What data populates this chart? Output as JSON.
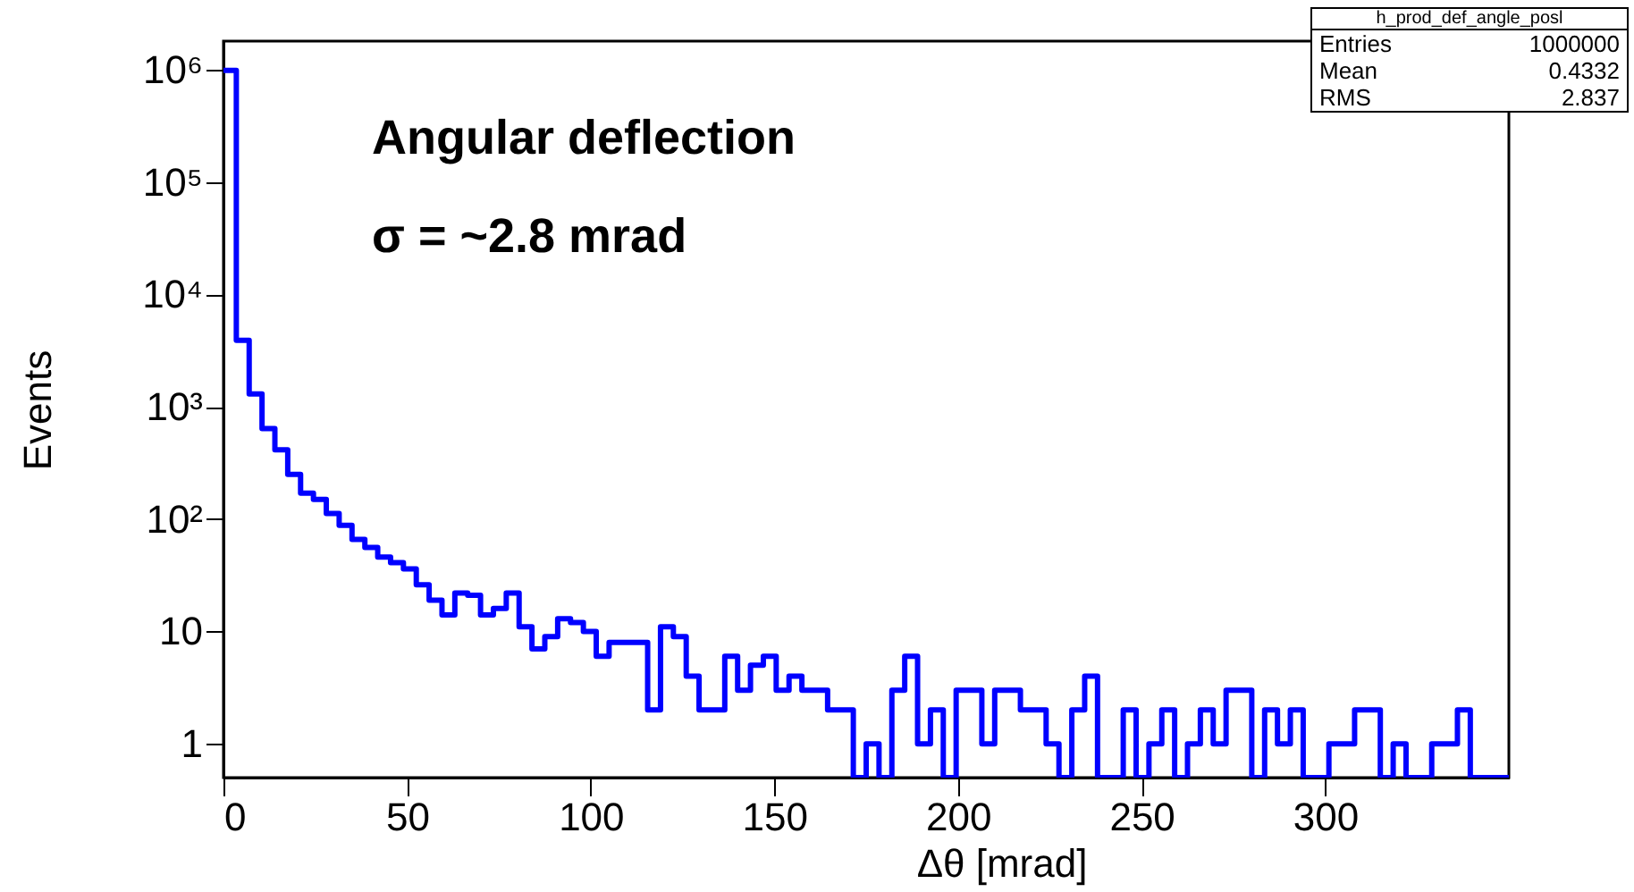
{
  "chart_data": {
    "type": "histogram",
    "xlabel": "Δθ [mrad]",
    "ylabel": "Events",
    "annotations": [
      "Angular deflection",
      "σ = ~2.8 mrad",
      "h_prod_def_angle_posl",
      "Entries 1000000",
      "Mean 0.4332",
      "RMS 2.837"
    ],
    "bins": [
      0,
      3.5,
      7,
      10.5,
      14,
      17.5,
      21,
      24.5,
      28,
      31.5,
      35,
      38.5,
      42,
      45.5,
      49,
      52.5,
      56,
      59.5,
      63,
      66.5,
      70,
      73.5,
      77,
      80.5,
      84,
      87.5,
      91,
      94.5,
      98,
      101.5,
      105,
      108.5,
      112,
      115.5,
      119,
      122.5,
      126,
      129.5,
      133,
      136.5,
      140,
      143.5,
      147,
      150.5,
      154,
      157.5,
      161,
      164.5,
      168,
      171.5,
      175,
      178.5,
      182,
      185.5,
      189,
      192.5,
      196,
      199.5,
      203,
      206.5,
      210,
      213.5,
      217,
      220.5,
      224,
      227.5,
      231,
      234.5,
      238,
      241.5,
      245,
      248.5,
      252,
      255.5,
      259,
      262.5,
      266,
      269.5,
      273,
      276.5,
      280,
      283.5,
      287,
      290.5,
      294,
      297.5,
      301,
      304.5,
      308,
      311.5,
      315,
      318.5,
      322,
      325.5,
      329,
      332.5,
      336,
      339.5,
      343,
      346.5,
      350
    ],
    "values": [
      990000,
      3900,
      1300,
      640,
      415,
      250,
      170,
      150,
      112,
      88,
      66,
      56,
      46,
      41,
      36,
      26,
      19,
      14,
      22,
      21,
      14,
      16,
      22,
      11,
      7,
      9,
      13,
      12,
      10,
      6,
      8,
      8,
      8,
      2,
      11,
      9,
      4,
      2,
      2,
      6,
      3,
      5,
      6,
      3,
      4,
      3,
      3,
      2,
      2,
      null,
      1,
      null,
      3,
      6,
      1,
      2,
      null,
      3,
      3,
      1,
      3,
      3,
      2,
      2,
      1,
      null,
      2,
      4,
      null,
      null,
      2,
      null,
      1,
      2,
      null,
      1,
      2,
      1,
      3,
      3,
      null,
      2,
      1,
      2,
      null,
      null,
      1,
      1,
      2,
      2,
      null,
      1,
      null,
      null,
      1,
      1,
      2,
      null,
      null,
      null
    ],
    "color": "#0000ff",
    "log": "y",
    "xlim": [
      0,
      350
    ],
    "xticks": [
      0,
      50,
      100,
      150,
      200,
      250,
      300
    ],
    "ylim": [
      0.5,
      1800000
    ],
    "yticks": [
      1,
      10,
      {
        "value": 100,
        "label": "10²"
      },
      {
        "value": 1000,
        "label": "10³"
      },
      {
        "value": 10000,
        "label": "10⁴"
      },
      {
        "value": 100000,
        "label": "10⁵"
      },
      {
        "value": 1000000,
        "label": "10⁶"
      }
    ],
    "grid": false
  }
}
